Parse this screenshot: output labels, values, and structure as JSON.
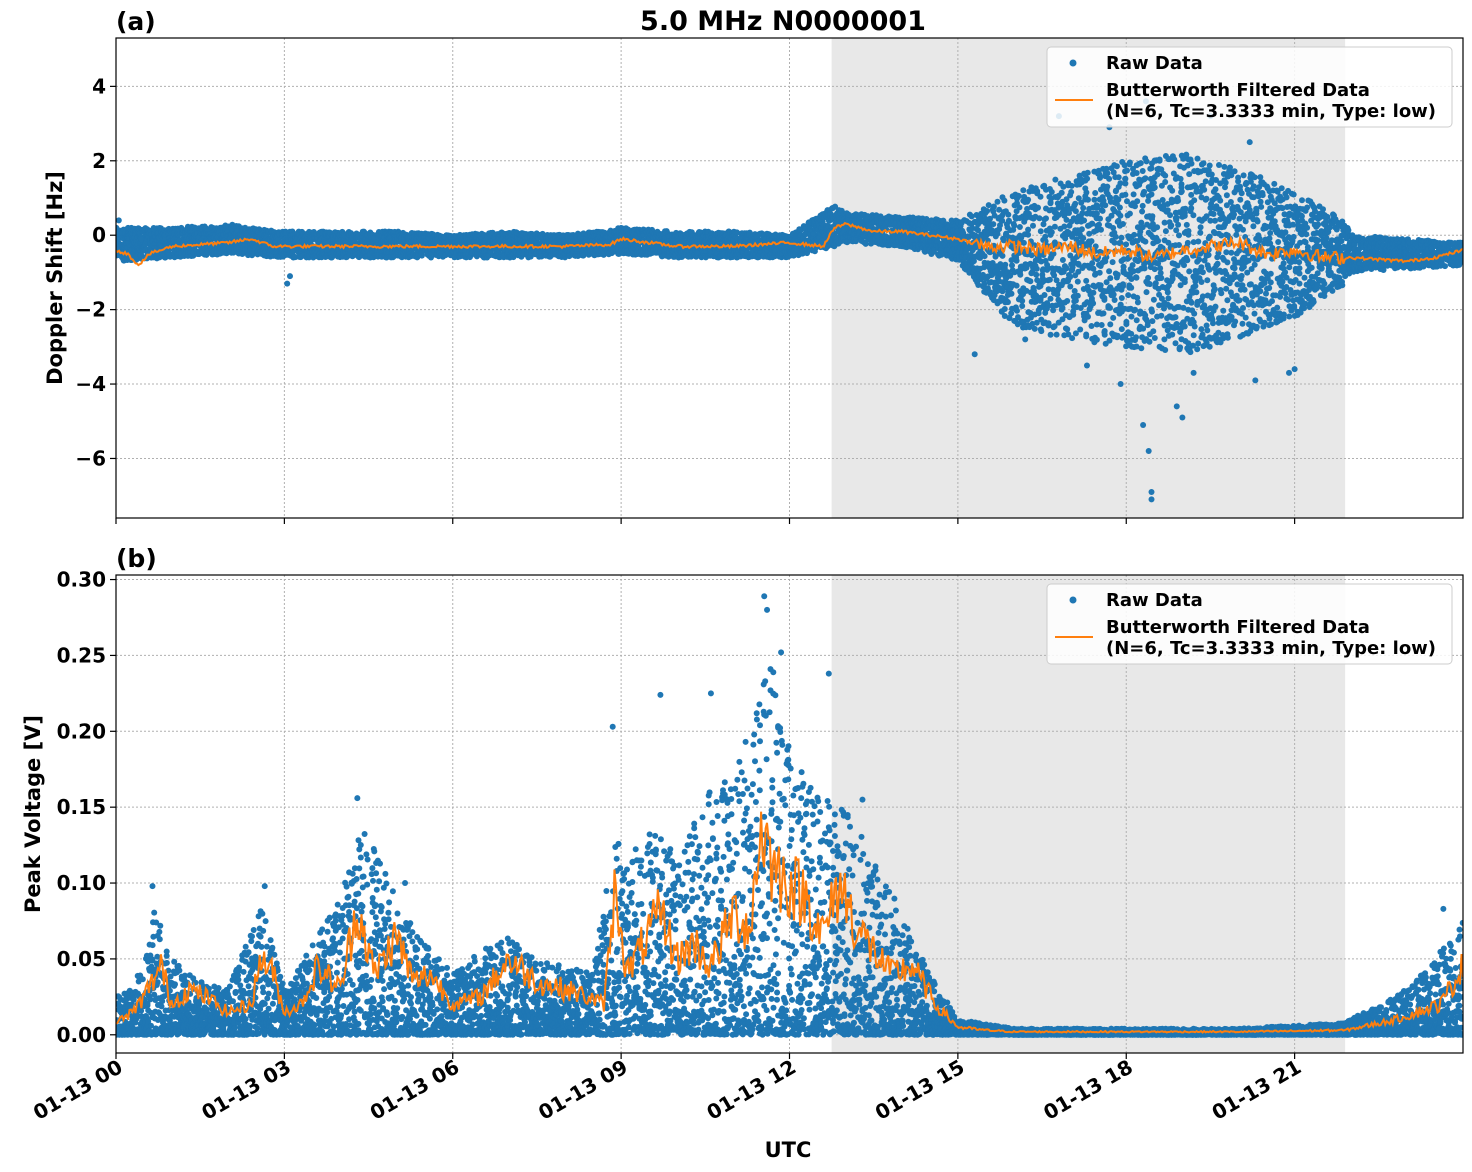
{
  "figure_title": "5.0 MHz N0000001",
  "x_axis_label": "UTC",
  "legend": {
    "raw": "Raw Data",
    "filtered_line1": "Butterworth Filtered Data",
    "filtered_line2": "(N=6, Tc=3.3333 min, Type: low)"
  },
  "colors": {
    "raw": "#1f77b4",
    "filtered": "#ff7f0e",
    "shade": "#e8e8e8"
  },
  "chart_data": [
    {
      "panel_label": "(a)",
      "type": "scatter",
      "ylabel": "Doppler Shift [Hz]",
      "xlim": [
        0,
        24
      ],
      "ylim": [
        -7.6,
        5.3
      ],
      "x_unit": "hours UTC on 01-13",
      "x_ticks": [
        0,
        3,
        6,
        9,
        12,
        15,
        18,
        21
      ],
      "y_ticks": [
        4,
        2,
        0,
        -2,
        -4,
        -6
      ],
      "y_tick_labels": [
        "4",
        "2",
        "0",
        "−2",
        "−4",
        "−6"
      ],
      "shaded_span": [
        12.75,
        21.9
      ],
      "grid": true,
      "legend_position": "top-right",
      "series": [
        {
          "name": "Raw Data",
          "style": "points",
          "x": [
            0,
            1,
            2,
            3,
            4,
            5,
            6,
            7,
            8,
            9,
            10,
            11,
            12,
            12.8,
            13,
            14,
            15,
            16,
            17,
            18,
            19,
            20,
            21,
            21.9,
            22,
            23,
            24
          ],
          "y_low": [
            -0.7,
            -0.6,
            -0.5,
            -0.6,
            -0.6,
            -0.6,
            -0.6,
            -0.6,
            -0.6,
            -0.5,
            -0.6,
            -0.6,
            -0.6,
            -0.3,
            -0.2,
            -0.3,
            -0.7,
            -2.5,
            -2.8,
            -3.0,
            -3.2,
            -2.8,
            -2.2,
            -1.3,
            -1.0,
            -0.9,
            -0.8
          ],
          "y_high": [
            0.2,
            0.2,
            0.3,
            0.1,
            0.1,
            0.1,
            0.0,
            0.1,
            0.0,
            0.2,
            0.1,
            0.1,
            0.0,
            0.8,
            0.6,
            0.5,
            0.4,
            1.2,
            1.6,
            2.0,
            2.2,
            1.8,
            1.2,
            0.4,
            0.0,
            -0.1,
            -0.2
          ],
          "outliers": [
            [
              0.05,
              0.4
            ],
            [
              3.05,
              -1.3
            ],
            [
              3.1,
              -1.1
            ],
            [
              15.3,
              -3.2
            ],
            [
              16.2,
              -2.8
            ],
            [
              16.8,
              3.2
            ],
            [
              17.3,
              -3.5
            ],
            [
              17.7,
              2.9
            ],
            [
              17.9,
              -4.0
            ],
            [
              18.35,
              3.6
            ],
            [
              18.3,
              -5.1
            ],
            [
              18.45,
              -6.9
            ],
            [
              18.45,
              -7.1
            ],
            [
              18.4,
              -5.8
            ],
            [
              18.9,
              -4.6
            ],
            [
              19.0,
              -4.9
            ],
            [
              19.2,
              -3.7
            ],
            [
              19.5,
              3.2
            ],
            [
              20.2,
              2.5
            ],
            [
              20.3,
              -3.9
            ],
            [
              20.9,
              -3.7
            ],
            [
              21.0,
              -3.6
            ]
          ]
        },
        {
          "name": "Butterworth Filtered Data",
          "style": "line",
          "x": [
            0,
            0.2,
            0.4,
            0.6,
            1,
            1.5,
            2,
            2.4,
            2.8,
            3.5,
            4,
            5,
            6,
            7,
            8,
            8.8,
            9,
            10,
            11,
            12,
            12.6,
            12.8,
            13,
            13.5,
            14,
            14.5,
            15,
            15.5,
            16,
            16.5,
            17,
            17.5,
            18,
            18.5,
            19,
            19.5,
            20,
            20.5,
            21,
            21.5,
            22,
            23,
            23.5,
            24
          ],
          "y": [
            -0.4,
            -0.5,
            -0.8,
            -0.5,
            -0.3,
            -0.25,
            -0.2,
            -0.1,
            -0.3,
            -0.3,
            -0.3,
            -0.3,
            -0.3,
            -0.3,
            -0.3,
            -0.25,
            -0.1,
            -0.3,
            -0.3,
            -0.2,
            -0.3,
            0.2,
            0.3,
            0.1,
            0.1,
            0.0,
            -0.1,
            -0.3,
            -0.3,
            -0.4,
            -0.3,
            -0.5,
            -0.4,
            -0.6,
            -0.4,
            -0.3,
            -0.2,
            -0.5,
            -0.4,
            -0.6,
            -0.6,
            -0.7,
            -0.6,
            -0.4
          ]
        }
      ]
    },
    {
      "panel_label": "(b)",
      "type": "scatter",
      "ylabel": "Peak Voltage [V]",
      "xlim": [
        0,
        24
      ],
      "ylim": [
        -0.012,
        0.303
      ],
      "x_unit": "hours UTC on 01-13",
      "x_ticks": [
        0,
        3,
        6,
        9,
        12,
        15,
        18,
        21
      ],
      "x_tick_labels": [
        "01-13 00",
        "01-13 03",
        "01-13 06",
        "01-13 09",
        "01-13 12",
        "01-13 15",
        "01-13 18",
        "01-13 21"
      ],
      "y_ticks": [
        0.0,
        0.05,
        0.1,
        0.15,
        0.2,
        0.25,
        0.3
      ],
      "y_tick_labels": [
        "0.00",
        "0.05",
        "0.10",
        "0.15",
        "0.20",
        "0.25",
        "0.30"
      ],
      "shaded_span": [
        12.75,
        21.9
      ],
      "grid": true,
      "legend_position": "top-right",
      "series": [
        {
          "name": "Raw Data",
          "style": "points",
          "x": [
            0,
            0.5,
            0.7,
            1,
            1.5,
            2,
            2.6,
            3,
            3.5,
            4,
            4.4,
            5,
            5.5,
            6,
            6.5,
            7,
            7.5,
            8,
            8.5,
            8.85,
            9.2,
            9.7,
            10,
            10.5,
            11,
            11.5,
            11.6,
            12,
            12.5,
            13,
            13.5,
            14,
            14.5,
            15,
            16,
            18,
            20,
            21.9,
            22.5,
            23,
            23.5,
            24
          ],
          "y_low": [
            0,
            0,
            0,
            0,
            0,
            0,
            0,
            0,
            0,
            0,
            0,
            0,
            0,
            0,
            0,
            0,
            0,
            0,
            0,
            0,
            0,
            0,
            0,
            0,
            0,
            0,
            0,
            0,
            0,
            0,
            0,
            0,
            0,
            0,
            0,
            0,
            0,
            0,
            0,
            0,
            0,
            0
          ],
          "y_high": [
            0.025,
            0.045,
            0.085,
            0.05,
            0.035,
            0.03,
            0.085,
            0.03,
            0.06,
            0.09,
            0.14,
            0.09,
            0.06,
            0.04,
            0.055,
            0.065,
            0.05,
            0.045,
            0.04,
            0.13,
            0.12,
            0.14,
            0.11,
            0.16,
            0.17,
            0.23,
            0.27,
            0.19,
            0.16,
            0.15,
            0.12,
            0.08,
            0.04,
            0.01,
            0.004,
            0.004,
            0.004,
            0.008,
            0.02,
            0.03,
            0.05,
            0.08
          ],
          "outliers": [
            [
              0.65,
              0.098
            ],
            [
              2.65,
              0.098
            ],
            [
              4.3,
              0.156
            ],
            [
              5.15,
              0.1
            ],
            [
              8.85,
              0.203
            ],
            [
              9.7,
              0.224
            ],
            [
              10.6,
              0.225
            ],
            [
              11.55,
              0.289
            ],
            [
              11.6,
              0.28
            ],
            [
              11.85,
              0.252
            ],
            [
              12.7,
              0.238
            ],
            [
              13.3,
              0.155
            ],
            [
              23.65,
              0.083
            ]
          ]
        },
        {
          "name": "Butterworth Filtered Data",
          "style": "line",
          "x": [
            0,
            0.3,
            0.5,
            0.8,
            1,
            1.3,
            1.6,
            2,
            2.4,
            2.6,
            2.8,
            3,
            3.3,
            3.6,
            4,
            4.3,
            4.6,
            5,
            5.3,
            5.6,
            6,
            6.5,
            7,
            7.5,
            8,
            8.4,
            8.7,
            8.9,
            9.1,
            9.4,
            9.7,
            10,
            10.3,
            10.6,
            11,
            11.3,
            11.5,
            11.7,
            12,
            12.3,
            12.6,
            12.9,
            13.2,
            13.5,
            13.8,
            14.2,
            14.6,
            15,
            15.5,
            16,
            18,
            20,
            21.9,
            22.3,
            22.8,
            23.2,
            23.6,
            24
          ],
          "y": [
            0.008,
            0.015,
            0.025,
            0.045,
            0.02,
            0.03,
            0.025,
            0.015,
            0.02,
            0.052,
            0.04,
            0.015,
            0.02,
            0.045,
            0.03,
            0.085,
            0.04,
            0.065,
            0.035,
            0.04,
            0.02,
            0.025,
            0.05,
            0.035,
            0.03,
            0.025,
            0.02,
            0.1,
            0.04,
            0.06,
            0.08,
            0.05,
            0.06,
            0.045,
            0.08,
            0.07,
            0.14,
            0.11,
            0.1,
            0.09,
            0.065,
            0.1,
            0.07,
            0.055,
            0.04,
            0.045,
            0.02,
            0.005,
            0.003,
            0.002,
            0.002,
            0.002,
            0.003,
            0.006,
            0.01,
            0.015,
            0.02,
            0.045
          ]
        }
      ]
    }
  ]
}
